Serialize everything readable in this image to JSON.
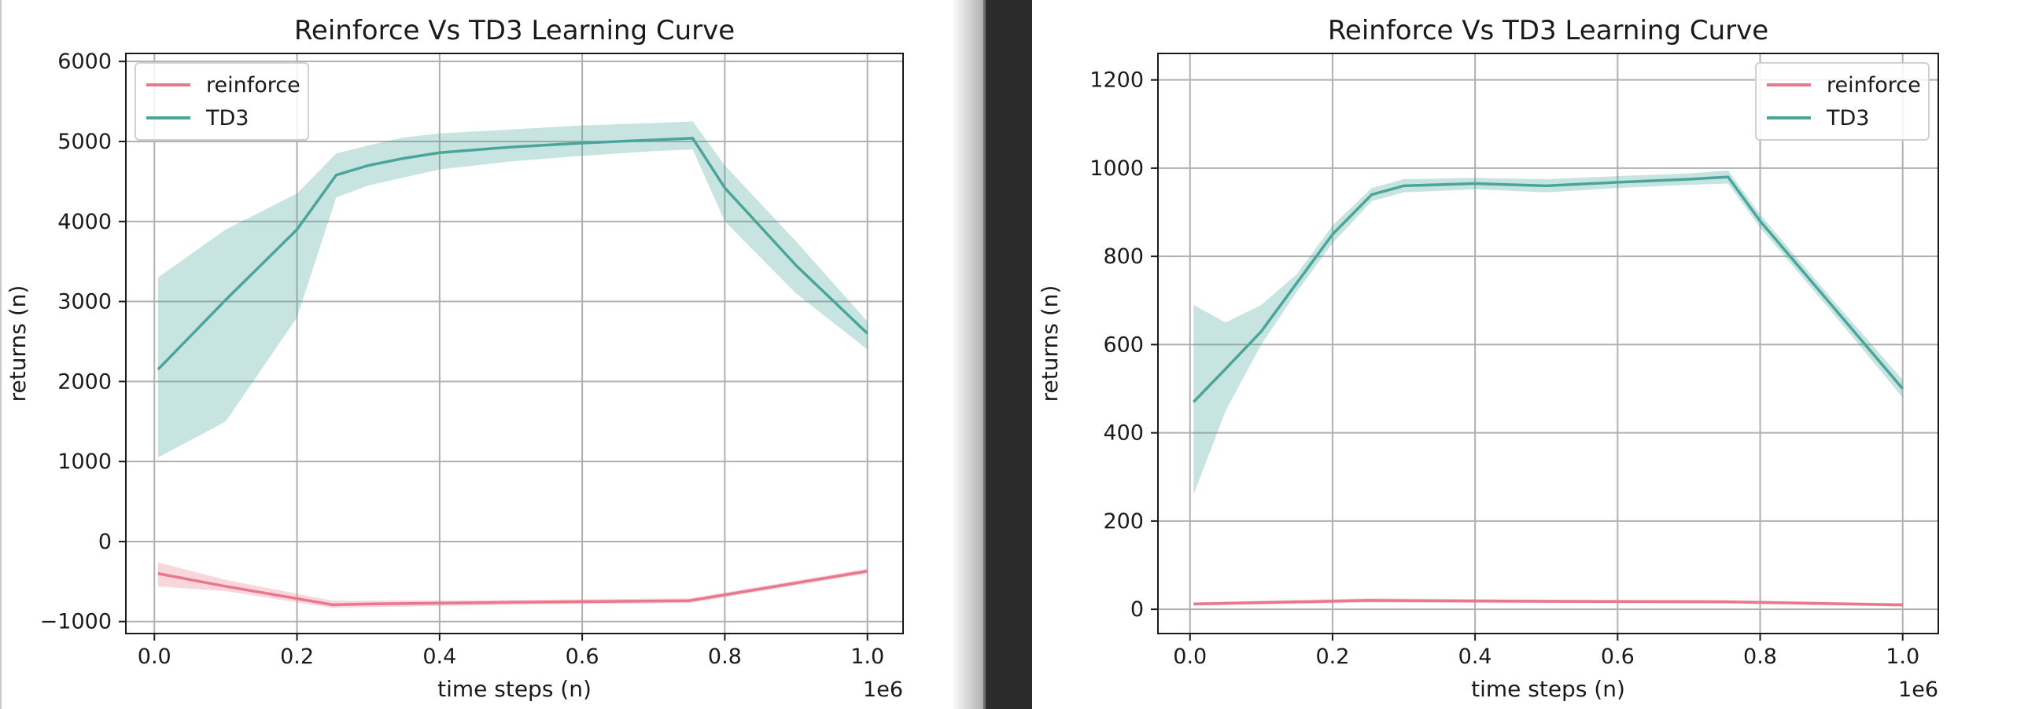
{
  "chart_data": [
    {
      "type": "line",
      "title": "Reinforce Vs TD3 Learning Curve",
      "xlabel": "time steps (n)",
      "ylabel": "returns (n)",
      "x_offset_label": "1e6",
      "xlim": [
        -0.04,
        1.05
      ],
      "ylim": [
        -1150,
        6100
      ],
      "xticks": [
        0.0,
        0.2,
        0.4,
        0.6,
        0.8,
        1.0
      ],
      "xtick_labels": [
        "0.0",
        "0.2",
        "0.4",
        "0.6",
        "0.8",
        "1.0"
      ],
      "yticks": [
        -1000,
        0,
        1000,
        2000,
        3000,
        4000,
        5000,
        6000
      ],
      "ytick_labels": [
        "−1000",
        "0",
        "1000",
        "2000",
        "3000",
        "4000",
        "5000",
        "6000"
      ],
      "grid": true,
      "legend_position": "top-left",
      "series": [
        {
          "name": "reinforce",
          "color": "#e8788c",
          "x": [
            0.005,
            0.1,
            0.25,
            0.3,
            0.5,
            0.75,
            1.0
          ],
          "y": [
            -400,
            -560,
            -790,
            -780,
            -760,
            -740,
            -370
          ],
          "lower": [
            -560,
            -620,
            -830,
            -820,
            -790,
            -770,
            -400
          ],
          "upper": [
            -260,
            -480,
            -740,
            -740,
            -730,
            -710,
            -340
          ]
        },
        {
          "name": "TD3",
          "color": "#4aa59a",
          "x": [
            0.005,
            0.1,
            0.2,
            0.255,
            0.3,
            0.35,
            0.4,
            0.5,
            0.6,
            0.7,
            0.755,
            0.8,
            0.9,
            1.0
          ],
          "y": [
            2150,
            3020,
            3900,
            4580,
            4700,
            4790,
            4860,
            4930,
            4980,
            5020,
            5040,
            4420,
            3450,
            2600
          ],
          "lower": [
            1050,
            1500,
            2800,
            4300,
            4450,
            4550,
            4650,
            4750,
            4820,
            4880,
            4900,
            4000,
            3100,
            2400
          ],
          "upper": [
            3300,
            3900,
            4350,
            4850,
            4950,
            5050,
            5100,
            5150,
            5200,
            5230,
            5250,
            4700,
            3750,
            2750
          ]
        }
      ]
    },
    {
      "type": "line",
      "title": "Reinforce Vs TD3 Learning Curve",
      "xlabel": "time steps (n)",
      "ylabel": "returns (n)",
      "x_offset_label": "1e6",
      "xlim": [
        -0.045,
        1.05
      ],
      "ylim": [
        -55,
        1260
      ],
      "xticks": [
        0.0,
        0.2,
        0.4,
        0.6,
        0.8,
        1.0
      ],
      "xtick_labels": [
        "0.0",
        "0.2",
        "0.4",
        "0.6",
        "0.8",
        "1.0"
      ],
      "yticks": [
        0,
        200,
        400,
        600,
        800,
        1000,
        1200
      ],
      "ytick_labels": [
        "0",
        "200",
        "400",
        "600",
        "800",
        "1000",
        "1200"
      ],
      "grid": true,
      "legend_position": "top-right",
      "series": [
        {
          "name": "reinforce",
          "color": "#e8788c",
          "x": [
            0.005,
            0.25,
            0.5,
            0.75,
            1.0
          ],
          "y": [
            12,
            20,
            18,
            17,
            10
          ],
          "lower": [
            8,
            15,
            14,
            13,
            6
          ],
          "upper": [
            16,
            25,
            22,
            21,
            14
          ]
        },
        {
          "name": "TD3",
          "color": "#4aa59a",
          "x": [
            0.005,
            0.05,
            0.1,
            0.15,
            0.2,
            0.255,
            0.3,
            0.4,
            0.5,
            0.6,
            0.7,
            0.755,
            0.8,
            0.9,
            1.0
          ],
          "y": [
            470,
            545,
            630,
            740,
            850,
            940,
            960,
            965,
            960,
            968,
            975,
            980,
            880,
            690,
            500
          ],
          "lower": [
            260,
            450,
            600,
            720,
            830,
            925,
            945,
            952,
            945,
            955,
            962,
            965,
            865,
            675,
            480
          ],
          "upper": [
            690,
            650,
            690,
            760,
            870,
            955,
            975,
            978,
            975,
            982,
            988,
            995,
            895,
            705,
            520
          ]
        }
      ]
    }
  ]
}
